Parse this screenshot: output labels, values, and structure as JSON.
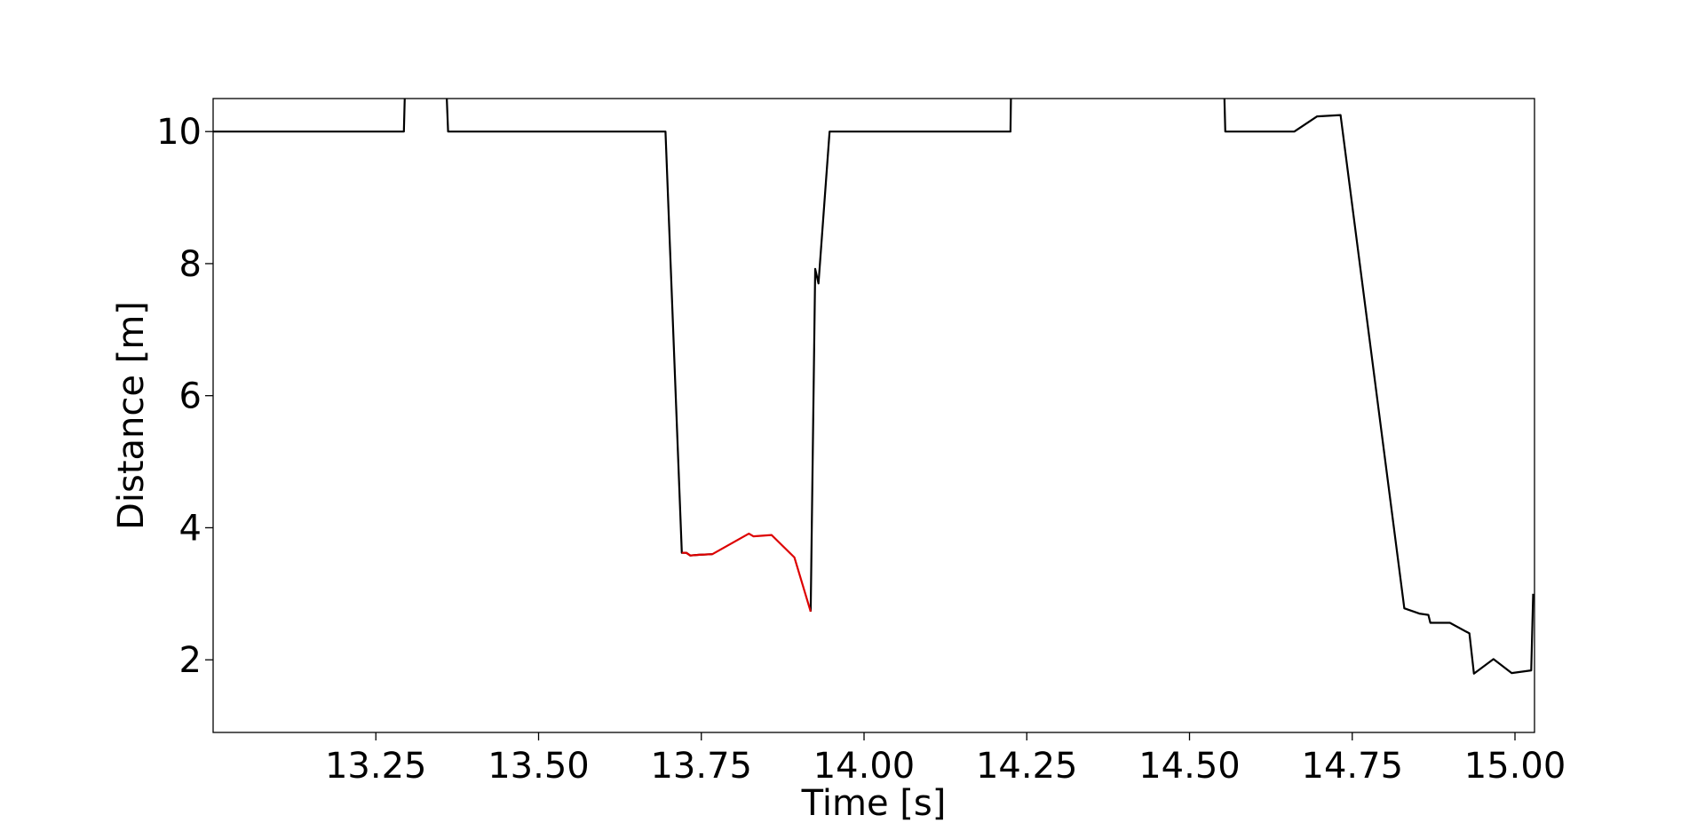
{
  "chart_data": {
    "type": "line",
    "title": "",
    "xlabel": "Time [s]",
    "ylabel": "Distance [m]",
    "xlim": [
      13.0,
      15.03
    ],
    "ylim": [
      0.9,
      10.5
    ],
    "grid": false,
    "x_ticks": [
      {
        "value": 13.25,
        "label": "13.25"
      },
      {
        "value": 13.5,
        "label": "13.50"
      },
      {
        "value": 13.75,
        "label": "13.75"
      },
      {
        "value": 14.0,
        "label": "14.00"
      },
      {
        "value": 14.25,
        "label": "14.25"
      },
      {
        "value": 14.5,
        "label": "14.50"
      },
      {
        "value": 14.75,
        "label": "14.75"
      },
      {
        "value": 15.0,
        "label": "15.00"
      }
    ],
    "y_ticks": [
      {
        "value": 2,
        "label": "2"
      },
      {
        "value": 4,
        "label": "4"
      },
      {
        "value": 6,
        "label": "6"
      },
      {
        "value": 8,
        "label": "8"
      },
      {
        "value": 10,
        "label": "10"
      }
    ],
    "series": [
      {
        "color": "#000000",
        "segments": [
          [
            [
              13.0,
              10.0
            ],
            [
              13.293,
              10.0
            ],
            [
              13.297,
              11.5
            ]
          ],
          [
            [
              13.355,
              11.5
            ],
            [
              13.361,
              10.0
            ],
            [
              13.695,
              10.0
            ],
            [
              13.72,
              3.62
            ],
            [
              13.727,
              3.62
            ],
            [
              13.733,
              3.58
            ],
            [
              13.747,
              3.59
            ],
            [
              13.767,
              3.6
            ]
          ],
          [
            [
              13.918,
              2.73
            ],
            [
              13.925,
              7.92
            ],
            [
              13.93,
              7.7
            ],
            [
              13.947,
              10.0
            ],
            [
              14.225,
              10.0
            ],
            [
              14.227,
              11.5
            ]
          ],
          [
            [
              14.551,
              11.5
            ],
            [
              14.555,
              10.0
            ],
            [
              14.661,
              10.0
            ],
            [
              14.696,
              10.23
            ],
            [
              14.732,
              10.25
            ],
            [
              14.83,
              2.78
            ],
            [
              14.853,
              2.7
            ],
            [
              14.867,
              2.68
            ],
            [
              14.87,
              2.56
            ],
            [
              14.9,
              2.56
            ],
            [
              14.93,
              2.4
            ],
            [
              14.937,
              1.79
            ],
            [
              14.967,
              2.01
            ],
            [
              14.995,
              1.8
            ],
            [
              15.025,
              1.84
            ],
            [
              15.028,
              3.0
            ]
          ]
        ]
      },
      {
        "color": "#dd0000",
        "segments": [
          [
            [
              13.72,
              3.62
            ],
            [
              13.727,
              3.62
            ],
            [
              13.733,
              3.58
            ],
            [
              13.747,
              3.59
            ],
            [
              13.767,
              3.6
            ],
            [
              13.823,
              3.91
            ],
            [
              13.83,
              3.87
            ],
            [
              13.858,
              3.89
            ],
            [
              13.893,
              3.55
            ],
            [
              13.918,
              2.73
            ]
          ]
        ]
      }
    ]
  }
}
